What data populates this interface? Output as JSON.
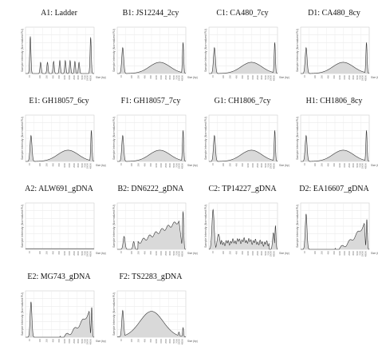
{
  "figure": {
    "panels": [
      {
        "title": "A1: Ladder",
        "kind": "ladder",
        "ylabel": "Sample Intensity (Normalized FU)",
        "xlabel": "Size (bp)"
      },
      {
        "title": "B1: JS12244_2cy",
        "kind": "wide",
        "ylabel": "Sample Intensity (Normalized FU)",
        "xlabel": "Size (bp)"
      },
      {
        "title": "C1: CA480_7cy",
        "kind": "wide",
        "ylabel": "Sample Intensity (Normalized FU)",
        "xlabel": "Size (bp)"
      },
      {
        "title": "D1: CA480_8cy",
        "kind": "wide",
        "ylabel": "Sample Intensity (Normalized FU)",
        "xlabel": "Size (bp)"
      },
      {
        "title": "E1: GH18057_6cy",
        "kind": "wide",
        "ylabel": "Sample Intensity (Normalized FU)",
        "xlabel": "Size (bp)"
      },
      {
        "title": "F1: GH18057_7cy",
        "kind": "wide",
        "ylabel": "Sample Intensity (Normalized FU)",
        "xlabel": "Size (bp)"
      },
      {
        "title": "G1: CH1806_7cy",
        "kind": "wide",
        "ylabel": "Sample Intensity (Normalized FU)",
        "xlabel": "Size (bp)"
      },
      {
        "title": "H1: CH1806_8cy",
        "kind": "wide",
        "ylabel": "Sample Intensity (Normalized FU)",
        "xlabel": "Size (bp)"
      },
      {
        "title": "A2: ALW691_gDNA",
        "kind": "flat",
        "ylabel": "Sample Intensity (Normalized FU)",
        "xlabel": "Size (bp)"
      },
      {
        "title": "B2: DN6222_gDNA",
        "kind": "ramp",
        "ylabel": "Sample Intensity (Normalized FU)",
        "xlabel": "Size (bp)"
      },
      {
        "title": "C2: TP14227_gDNA",
        "kind": "noisy",
        "ylabel": "Sample Intensity (Normalized FU)",
        "xlabel": "Size (bp)"
      },
      {
        "title": "D2: EA16607_gDNA",
        "kind": "hmw",
        "ylabel": "Sample Intensity (Normalized FU)",
        "xlabel": "Size (bp)"
      },
      {
        "title": "E2: MG743_gDNA",
        "kind": "hmw",
        "ylabel": "Sample Intensity (Normalized FU)",
        "xlabel": "Size (bp)"
      },
      {
        "title": "F2: TS2283_gDNA",
        "kind": "hump",
        "ylabel": "Sample Intensity (Normalized FU)",
        "xlabel": "Size (bp)"
      }
    ]
  },
  "chart_data": {
    "type": "area",
    "x_axis": "Size (bp)",
    "y_axis": "Sample Intensity (Normalized FU)",
    "tick_labels": [
      "15",
      "100",
      "250",
      "400",
      "600",
      "1000",
      "1500",
      "2500",
      "3500",
      "5000",
      "7000",
      "10000",
      "48500"
    ],
    "panel_titles": [
      "A1: Ladder",
      "B1: JS12244_2cy",
      "C1: CA480_7cy",
      "D1: CA480_8cy",
      "E1: GH18057_6cy",
      "F1: GH18057_7cy",
      "G1: CH1806_7cy",
      "H1: CH1806_8cy",
      "A2: ALW691_gDNA",
      "B2: DN6222_gDNA",
      "C2: TP14227_gDNA",
      "D2: EA16607_gDNA",
      "E2: MG743_gDNA",
      "F2: TS2283_gDNA"
    ],
    "grid": true
  }
}
